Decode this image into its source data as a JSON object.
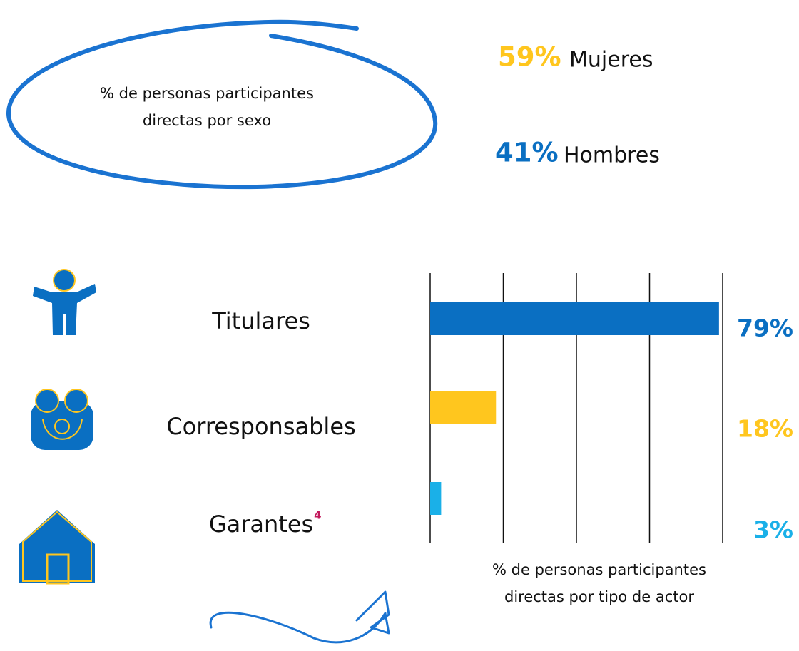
{
  "sex_breakdown": {
    "title": "% de personas participantes directas por sexo",
    "items": [
      {
        "label": "59%",
        "name": "Mujeres",
        "color": "#ffc61e"
      },
      {
        "label": "41%",
        "name": "Hombres",
        "color": "#0a6fc2"
      }
    ]
  },
  "chart_data": {
    "type": "bar",
    "orientation": "horizontal",
    "title": "% de personas participantes directas por tipo de actor",
    "categories": [
      "Titulares",
      "Corresponsables",
      "Garantes"
    ],
    "footnote": "4",
    "values": [
      79,
      18,
      3
    ],
    "value_labels": [
      "79%",
      "18%",
      "3%"
    ],
    "colors": [
      "#0a6fc2",
      "#ffc61e",
      "#1ab0e8"
    ],
    "xlim": [
      0,
      80
    ],
    "xticks": [
      0,
      20,
      40,
      60,
      80
    ],
    "grid": true
  }
}
